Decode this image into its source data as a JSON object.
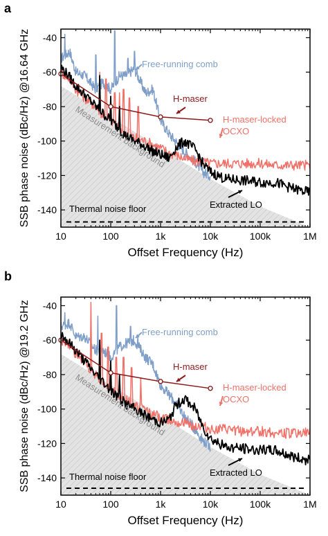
{
  "chart_data": [
    {
      "panel_label": "a",
      "type": "line",
      "xscale": "log",
      "xlim": [
        10,
        1000000
      ],
      "ylim": [
        -150,
        -35
      ],
      "xlabel": "Offset Frequency (Hz)",
      "ylabel": "SSB phase noise (dBc/Hz) @16.64 GHz",
      "xticks": [
        10,
        100,
        1000,
        10000,
        100000,
        1000000
      ],
      "xtick_labels": [
        "10",
        "100",
        "1k",
        "10k",
        "100k",
        "1M"
      ],
      "yticks": [
        -140,
        -120,
        -100,
        -80,
        -60,
        -40
      ],
      "ytick_labels": [
        "-140",
        "-120",
        "-100",
        "-80",
        "-60",
        "-40"
      ],
      "annotations": [
        {
          "text": "Free-running comb",
          "color": "#7f9fc9"
        },
        {
          "text": "H-maser",
          "color": "#8b1a1a"
        },
        {
          "text": "H-maser-locked",
          "color": "#f07068"
        },
        {
          "text": "OCXO",
          "color": "#f07068"
        },
        {
          "text": "Measurement background",
          "color": "#8c8c8c"
        },
        {
          "text": "Thermal noise floor",
          "color": "#000000"
        },
        {
          "text": "Extracted LO",
          "color": "#000000"
        }
      ],
      "series": [
        {
          "color": "#7f9fc9",
          "style": "noisy",
          "x": [
            10,
            15,
            20,
            30,
            50,
            70,
            100,
            150,
            200,
            300,
            500,
            700,
            1000,
            1500,
            2000,
            3000,
            5000,
            7000,
            10000
          ],
          "y": [
            -52,
            -48,
            -60,
            -62,
            -70,
            -66,
            -70,
            -62,
            -62,
            -58,
            -72,
            -70,
            -88,
            -96,
            -100,
            -106,
            -112,
            -118,
            -120
          ],
          "spikes": [
            {
              "x": 12,
              "y": -38
            },
            {
              "x": 50,
              "y": -50
            },
            {
              "x": 120,
              "y": -36
            },
            {
              "x": 220,
              "y": -52
            },
            {
              "x": 300,
              "y": -48
            }
          ]
        },
        {
          "color": "#f07068",
          "style": "noisy",
          "x": [
            10,
            15,
            20,
            30,
            50,
            70,
            100,
            150,
            200,
            300,
            500,
            700,
            1000,
            1500,
            2000,
            3000,
            5000,
            7000,
            10000,
            20000,
            50000,
            100000,
            200000,
            500000,
            1000000
          ],
          "y": [
            -60,
            -64,
            -70,
            -75,
            -80,
            -85,
            -88,
            -92,
            -95,
            -98,
            -100,
            -102,
            -104,
            -107,
            -108,
            -110,
            -112,
            -112,
            -113,
            -113,
            -113,
            -113,
            -114,
            -114,
            -114
          ],
          "spikes": [
            {
              "x": 60,
              "y": -60
            },
            {
              "x": 80,
              "y": -64
            },
            {
              "x": 120,
              "y": -72
            },
            {
              "x": 150,
              "y": -72
            },
            {
              "x": 180,
              "y": -70
            },
            {
              "x": 240,
              "y": -75
            },
            {
              "x": 360,
              "y": -80
            }
          ]
        },
        {
          "color": "#000000",
          "style": "noisy",
          "x": [
            10,
            15,
            20,
            30,
            50,
            70,
            100,
            150,
            200,
            300,
            500,
            700,
            1000,
            1500,
            2000,
            3000,
            5000,
            7000,
            10000,
            20000,
            50000,
            100000,
            200000,
            500000,
            1000000
          ],
          "y": [
            -57,
            -63,
            -68,
            -73,
            -80,
            -84,
            -88,
            -93,
            -97,
            -100,
            -103,
            -106,
            -108,
            -110,
            -104,
            -100,
            -105,
            -113,
            -118,
            -122,
            -123,
            -124,
            -124,
            -128,
            -130
          ],
          "spikes": [
            {
              "x": 60,
              "y": -62
            },
            {
              "x": 100,
              "y": -74
            },
            {
              "x": 150,
              "y": -80
            }
          ]
        },
        {
          "color": "#8b1a1a",
          "style": "markers",
          "x": [
            10,
            100,
            1000,
            10000
          ],
          "y": [
            -61,
            -80,
            -86,
            -88
          ]
        }
      ],
      "background_region": {
        "x": [
          10,
          100,
          1000,
          10000,
          100000,
          1000000
        ],
        "y": [
          -68,
          -86,
          -104,
          -122,
          -138,
          -150
        ]
      },
      "thermal_noise_floor": -147,
      "grid": false
    },
    {
      "panel_label": "b",
      "type": "line",
      "xscale": "log",
      "xlim": [
        10,
        1000000
      ],
      "ylim": [
        -150,
        -35
      ],
      "xlabel": "Offset Frequency (Hz)",
      "ylabel": "SSB phase noise (dBc/Hz) @19.2 GHz",
      "xticks": [
        10,
        100,
        1000,
        10000,
        100000,
        1000000
      ],
      "xtick_labels": [
        "10",
        "100",
        "1k",
        "10k",
        "100k",
        "1M"
      ],
      "yticks": [
        -140,
        -120,
        -100,
        -80,
        -60,
        -40
      ],
      "ytick_labels": [
        "-140",
        "-120",
        "-100",
        "-80",
        "-60",
        "-40"
      ],
      "annotations": [
        {
          "text": "Free-running comb",
          "color": "#7f9fc9"
        },
        {
          "text": "H-maser",
          "color": "#8b1a1a"
        },
        {
          "text": "H-maser-locked",
          "color": "#f07068"
        },
        {
          "text": "OCXO",
          "color": "#f07068"
        },
        {
          "text": "Measurement background",
          "color": "#8c8c8c"
        },
        {
          "text": "Thermal noise floor",
          "color": "#000000"
        },
        {
          "text": "Extracted LO",
          "color": "#000000"
        }
      ],
      "series": [
        {
          "color": "#7f9fc9",
          "style": "noisy",
          "x": [
            10,
            15,
            20,
            30,
            50,
            70,
            100,
            150,
            200,
            300,
            500,
            700,
            1000,
            1500,
            2000,
            3000,
            5000,
            7000,
            10000
          ],
          "y": [
            -52,
            -50,
            -58,
            -58,
            -66,
            -66,
            -70,
            -64,
            -62,
            -60,
            -70,
            -74,
            -86,
            -92,
            -96,
            -104,
            -112,
            -118,
            -122
          ],
          "spikes": [
            {
              "x": 12,
              "y": -44
            },
            {
              "x": 55,
              "y": -46
            },
            {
              "x": 130,
              "y": -40
            },
            {
              "x": 250,
              "y": -52
            },
            {
              "x": 350,
              "y": -58
            }
          ]
        },
        {
          "color": "#f07068",
          "style": "noisy",
          "x": [
            10,
            15,
            20,
            30,
            50,
            70,
            100,
            150,
            200,
            300,
            500,
            700,
            1000,
            1500,
            2000,
            3000,
            5000,
            7000,
            10000,
            20000,
            50000,
            100000,
            200000,
            500000,
            1000000
          ],
          "y": [
            -60,
            -63,
            -68,
            -73,
            -80,
            -84,
            -88,
            -92,
            -95,
            -98,
            -100,
            -103,
            -105,
            -106,
            -107,
            -108,
            -110,
            -110,
            -112,
            -112,
            -113,
            -113,
            -114,
            -114,
            -114
          ],
          "spikes": [
            {
              "x": 40,
              "y": -38
            },
            {
              "x": 65,
              "y": -56
            },
            {
              "x": 90,
              "y": -64
            },
            {
              "x": 130,
              "y": -70
            },
            {
              "x": 180,
              "y": -70
            },
            {
              "x": 260,
              "y": -76
            },
            {
              "x": 400,
              "y": -82
            }
          ]
        },
        {
          "color": "#000000",
          "style": "noisy",
          "x": [
            10,
            15,
            20,
            30,
            50,
            70,
            100,
            150,
            200,
            300,
            500,
            700,
            1000,
            1500,
            2000,
            3000,
            5000,
            7000,
            10000,
            20000,
            50000,
            100000,
            200000,
            500000,
            1000000
          ],
          "y": [
            -56,
            -62,
            -66,
            -72,
            -80,
            -84,
            -89,
            -94,
            -97,
            -100,
            -104,
            -106,
            -108,
            -106,
            -98,
            -94,
            -100,
            -110,
            -117,
            -122,
            -123,
            -124,
            -124,
            -128,
            -130
          ],
          "spikes": [
            {
              "x": 60,
              "y": -60
            },
            {
              "x": 100,
              "y": -72
            },
            {
              "x": 150,
              "y": -80
            }
          ]
        },
        {
          "color": "#8b1a1a",
          "style": "markers",
          "x": [
            10,
            100,
            1000,
            10000
          ],
          "y": [
            -60,
            -79,
            -84,
            -88
          ]
        }
      ],
      "background_region": {
        "x": [
          10,
          100,
          1000,
          10000,
          100000,
          1000000
        ],
        "y": [
          -68,
          -86,
          -104,
          -122,
          -138,
          -150
        ]
      },
      "thermal_noise_floor": -146,
      "grid": false
    }
  ]
}
